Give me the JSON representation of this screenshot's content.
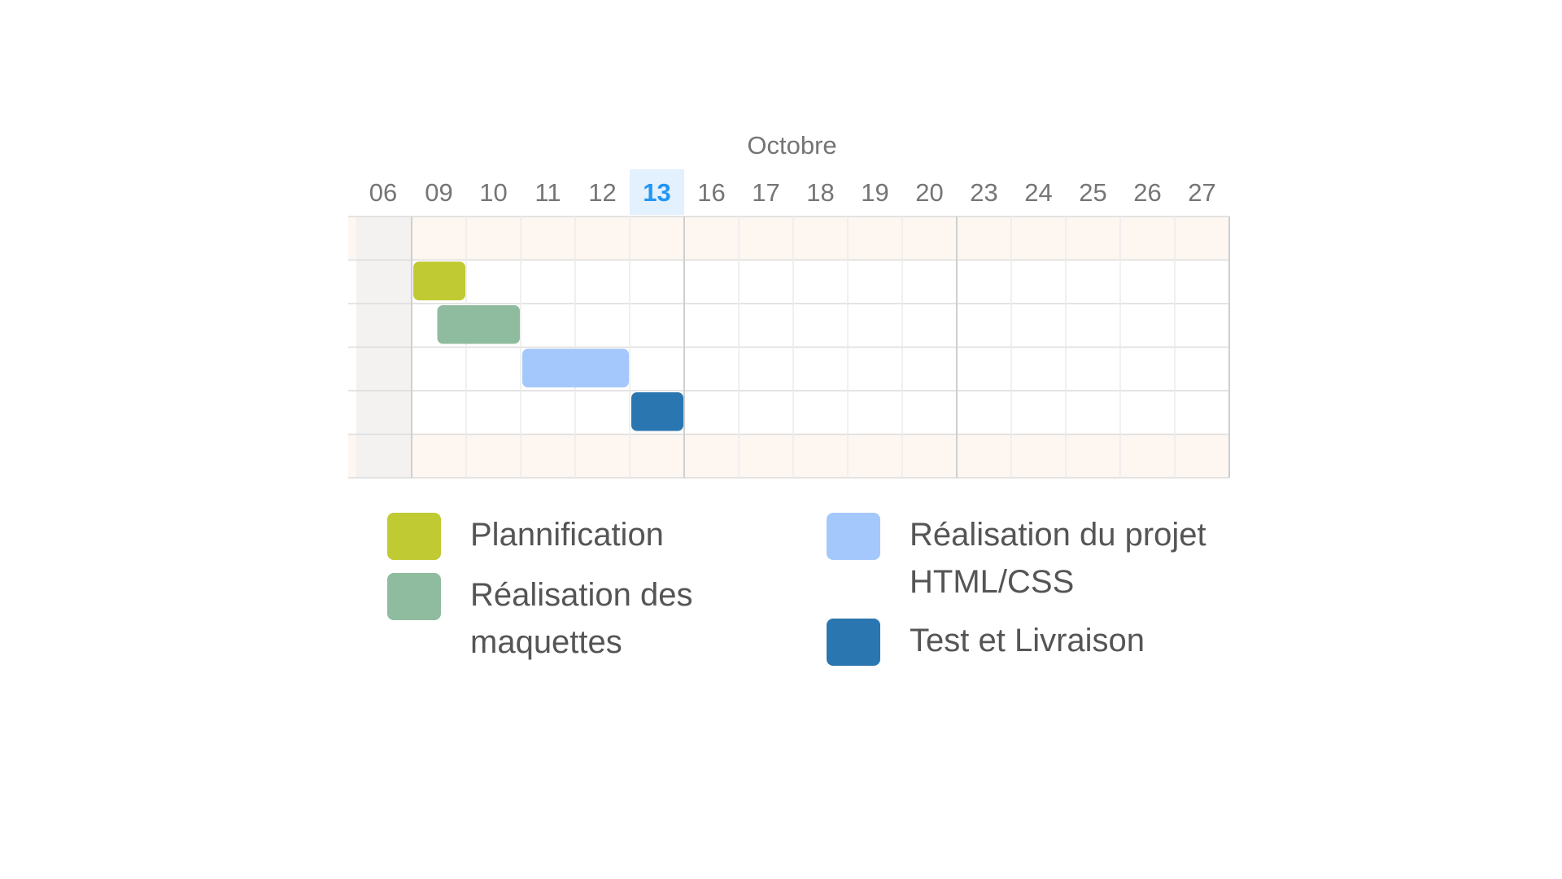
{
  "chart_data": {
    "type": "gantt",
    "month": "Octobre",
    "days": [
      "06",
      "09",
      "10",
      "11",
      "12",
      "13",
      "16",
      "17",
      "18",
      "19",
      "20",
      "23",
      "24",
      "25",
      "26",
      "27"
    ],
    "today": "13",
    "tasks": [
      {
        "name": "Plannification",
        "start": "09",
        "end": "09",
        "color": "#c0ca33"
      },
      {
        "name": "Réalisation des maquettes",
        "start": "09",
        "end": "10",
        "color": "#8fbc9f"
      },
      {
        "name": "Réalisation du projet HTML/CSS",
        "start": "11",
        "end": "12",
        "color": "#a4c8fb"
      },
      {
        "name": "Test et Livraison",
        "start": "13",
        "end": "13",
        "color": "#2a76b0"
      }
    ]
  },
  "legend": [
    {
      "label": "Plannification",
      "color": "#c0ca33"
    },
    {
      "label": "Réalisation des maquettes",
      "color": "#8fbc9f"
    },
    {
      "label": "Réalisation du projet HTML/CSS",
      "color": "#a4c8fb"
    },
    {
      "label": "Test et Livraison",
      "color": "#2a76b0"
    }
  ]
}
